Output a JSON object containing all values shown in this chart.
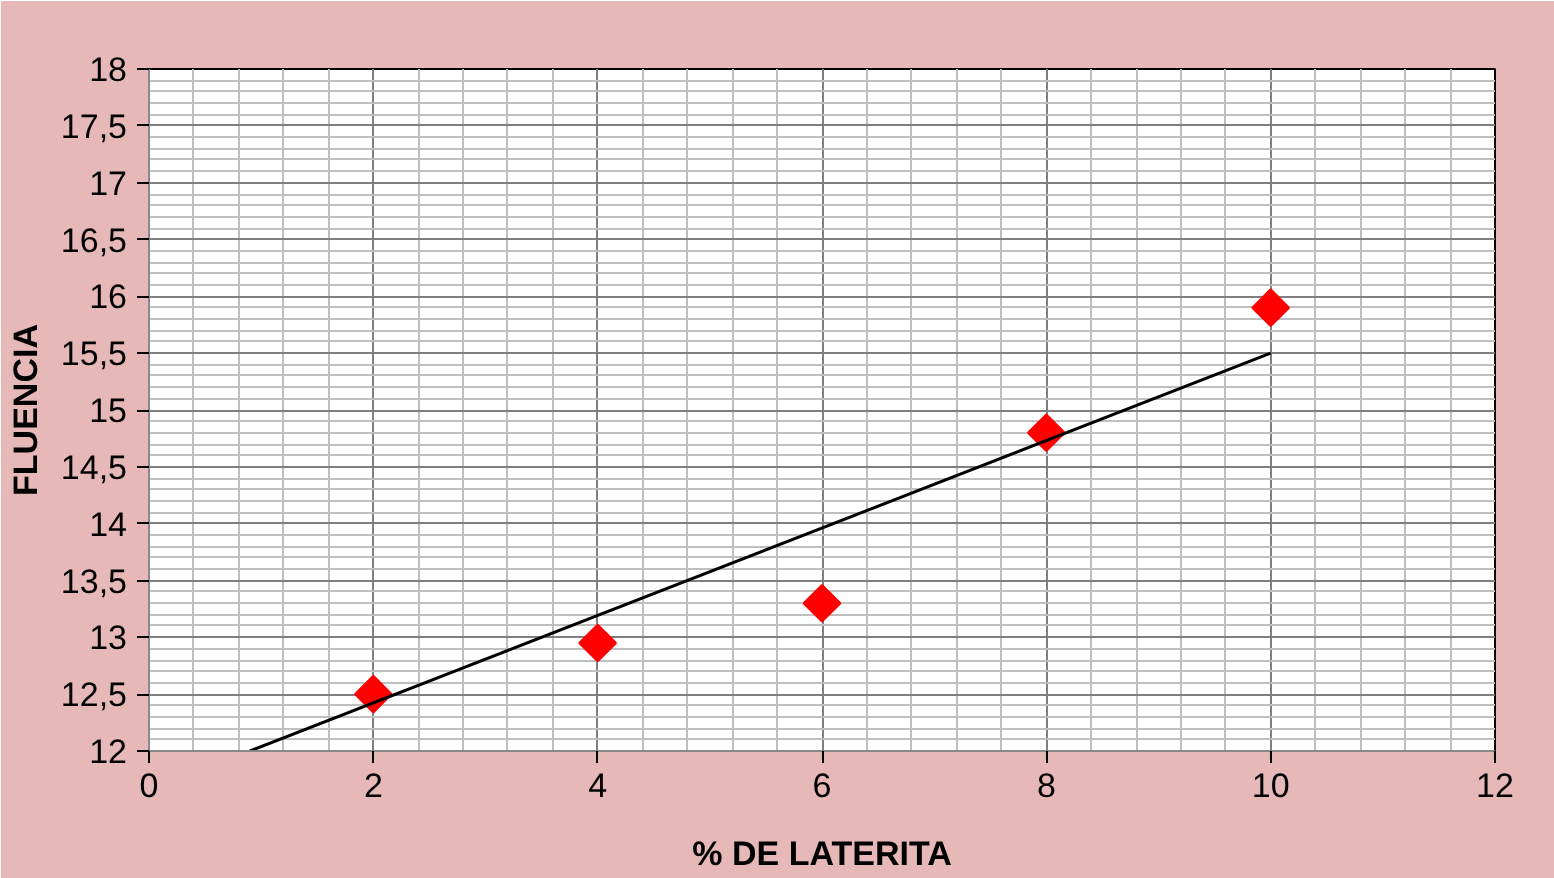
{
  "chart_data": {
    "type": "scatter",
    "xlabel": "% DE LATERITA",
    "ylabel": "FLUENCIA",
    "series": [
      {
        "color": "#ff0000",
        "marker": "diamond",
        "x": [
          2,
          4,
          6,
          8,
          10
        ],
        "values": [
          12.5,
          12.95,
          13.3,
          14.8,
          15.9
        ]
      },
      {
        "type": "line",
        "color": "#000000",
        "marker": "none",
        "line_style": "solid",
        "x": [
          0.9,
          10
        ],
        "values": [
          12.0,
          15.5
        ]
      }
    ],
    "xlim": [
      0,
      12
    ],
    "xticks": [
      0,
      2,
      4,
      6,
      8,
      10,
      12
    ],
    "ylim": [
      12,
      18
    ],
    "yticks": [
      {
        "value": 12,
        "label": "12"
      },
      {
        "value": 12.5,
        "label": "12,5"
      },
      {
        "value": 13,
        "label": "13"
      },
      {
        "value": 13.5,
        "label": "13,5"
      },
      {
        "value": 14,
        "label": "14"
      },
      {
        "value": 14.5,
        "label": "14,5"
      },
      {
        "value": 15,
        "label": "15"
      },
      {
        "value": 15.5,
        "label": "15,5"
      },
      {
        "value": 16,
        "label": "16"
      },
      {
        "value": 16.5,
        "label": "16,5"
      },
      {
        "value": 17,
        "label": "17"
      },
      {
        "value": 17.5,
        "label": "17,5"
      },
      {
        "value": 18,
        "label": "18"
      }
    ],
    "grid": true
  }
}
